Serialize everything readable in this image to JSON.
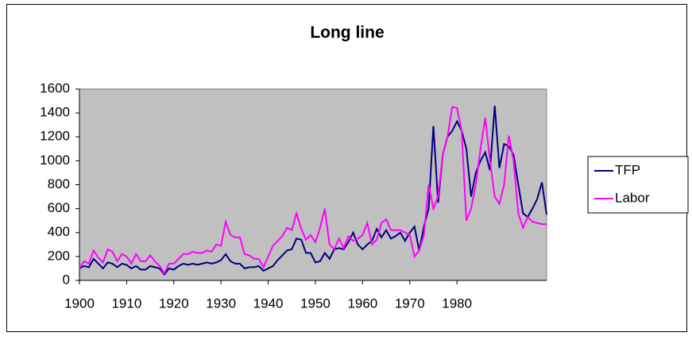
{
  "chart_data": {
    "type": "line",
    "title": "Long line",
    "x": [
      1900,
      1901,
      1902,
      1903,
      1904,
      1905,
      1906,
      1907,
      1908,
      1909,
      1910,
      1911,
      1912,
      1913,
      1914,
      1915,
      1916,
      1917,
      1918,
      1919,
      1920,
      1921,
      1922,
      1923,
      1924,
      1925,
      1926,
      1927,
      1928,
      1929,
      1930,
      1931,
      1932,
      1933,
      1934,
      1935,
      1936,
      1937,
      1938,
      1939,
      1940,
      1941,
      1942,
      1943,
      1944,
      1945,
      1946,
      1947,
      1948,
      1949,
      1950,
      1951,
      1952,
      1953,
      1954,
      1955,
      1956,
      1957,
      1958,
      1959,
      1960,
      1961,
      1962,
      1963,
      1964,
      1965,
      1966,
      1967,
      1968,
      1969,
      1970,
      1971,
      1972,
      1973,
      1974,
      1975,
      1976,
      1977,
      1978,
      1979,
      1980,
      1981,
      1982,
      1983,
      1984,
      1985,
      1986,
      1987,
      1988,
      1989,
      1990,
      1991,
      1992,
      1993,
      1994,
      1995,
      1996,
      1997,
      1998,
      1999
    ],
    "series": [
      {
        "name": "TFP",
        "color": "#000080",
        "values": [
          100,
          120,
          110,
          180,
          140,
          100,
          150,
          140,
          110,
          140,
          130,
          100,
          120,
          90,
          90,
          120,
          110,
          100,
          50,
          100,
          90,
          120,
          140,
          130,
          140,
          130,
          140,
          150,
          140,
          150,
          170,
          220,
          160,
          140,
          140,
          100,
          110,
          110,
          120,
          80,
          100,
          120,
          170,
          210,
          250,
          260,
          350,
          340,
          230,
          230,
          150,
          160,
          230,
          180,
          260,
          270,
          260,
          320,
          400,
          300,
          260,
          300,
          330,
          430,
          360,
          420,
          350,
          370,
          400,
          330,
          400,
          450,
          250,
          450,
          600,
          1290,
          650,
          1050,
          1200,
          1250,
          1330,
          1250,
          1100,
          700,
          900,
          1000,
          1070,
          920,
          1460,
          940,
          1140,
          1120,
          1050,
          800,
          560,
          530,
          600,
          680,
          820,
          550
        ]
      },
      {
        "name": "Labor",
        "color": "#ff00ff",
        "values": [
          100,
          160,
          140,
          250,
          190,
          150,
          260,
          240,
          160,
          220,
          200,
          140,
          220,
          160,
          160,
          210,
          160,
          120,
          60,
          140,
          140,
          180,
          220,
          220,
          240,
          230,
          230,
          250,
          240,
          300,
          290,
          490,
          380,
          360,
          360,
          220,
          210,
          180,
          180,
          110,
          200,
          290,
          330,
          370,
          440,
          420,
          560,
          430,
          340,
          380,
          320,
          440,
          600,
          300,
          260,
          350,
          270,
          370,
          330,
          350,
          380,
          480,
          300,
          340,
          480,
          510,
          420,
          420,
          420,
          400,
          380,
          200,
          250,
          380,
          800,
          600,
          700,
          1050,
          1200,
          1450,
          1440,
          1250,
          500,
          600,
          800,
          1100,
          1360,
          1000,
          700,
          640,
          800,
          1210,
          1000,
          560,
          440,
          530,
          490,
          480,
          470,
          470
        ]
      }
    ],
    "xlim": [
      1900,
      1999
    ],
    "xticks": [
      1900,
      1910,
      1920,
      1930,
      1940,
      1950,
      1960,
      1970,
      1980
    ],
    "ylim": [
      0,
      1600
    ],
    "yticks": [
      0,
      200,
      400,
      600,
      800,
      1000,
      1200,
      1400,
      1600
    ],
    "grid": false,
    "legend": "right",
    "plot_background": "#c0c0c0"
  }
}
